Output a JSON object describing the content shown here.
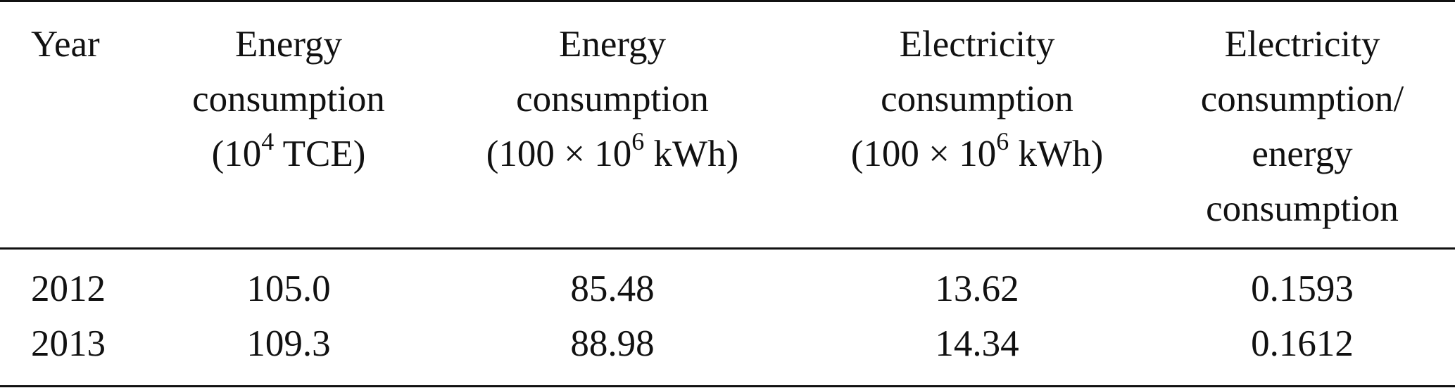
{
  "table": {
    "headers": {
      "year": {
        "lines": [
          "Year"
        ]
      },
      "energy_tce": {
        "lines": [
          "Energy",
          "consumption"
        ],
        "unit_prefix": "(10",
        "unit_sup": "4",
        "unit_suffix": " TCE)"
      },
      "energy_kwh": {
        "lines": [
          "Energy",
          "consumption"
        ],
        "unit_prefix": "(100 × 10",
        "unit_sup": "6",
        "unit_suffix": " kWh)"
      },
      "electricity_kwh": {
        "lines": [
          "Electricity",
          "consumption"
        ],
        "unit_prefix": "(100 × 10",
        "unit_sup": "6",
        "unit_suffix": " kWh)"
      },
      "ratio": {
        "lines": [
          "Electricity",
          "consumption/",
          "energy",
          "consumption"
        ]
      }
    },
    "rows": [
      {
        "year": "2012",
        "energy_tce": "105.0",
        "energy_kwh": "85.48",
        "electricity_kwh": "13.62",
        "ratio": "0.1593"
      },
      {
        "year": "2013",
        "energy_tce": "109.3",
        "energy_kwh": "88.98",
        "electricity_kwh": "14.34",
        "ratio": "0.1612"
      }
    ]
  }
}
